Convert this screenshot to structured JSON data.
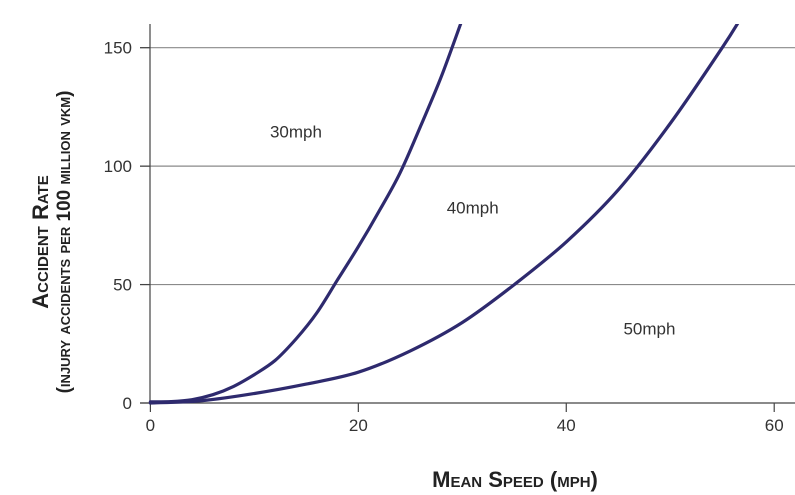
{
  "chart_data": {
    "type": "line",
    "xlabel": "Mean Speed (mph)",
    "ylabel": "Accident Rate",
    "ylabel_sub": "(injury accidents per 100 million vkm)",
    "xlim": [
      -1,
      62
    ],
    "ylim": [
      0,
      160
    ],
    "x_ticks": [
      0,
      20,
      40,
      60
    ],
    "y_ticks": [
      0,
      50,
      100,
      150
    ],
    "grid": "horizontal",
    "colors": {
      "line": "#2e2a6e",
      "grid": "#8a8a8a",
      "axis": "#444444",
      "text": "#333333"
    },
    "series": [
      {
        "name": "",
        "label_text": "30mph",
        "label_at": [
          14,
          112
        ],
        "x": [
          0,
          2,
          4,
          6,
          8,
          10,
          12,
          14,
          16,
          18,
          20,
          22,
          24,
          26,
          28,
          30
        ],
        "y": [
          0.5,
          0.6,
          1.4,
          3.5,
          7,
          12,
          18,
          27,
          38,
          52,
          66,
          81,
          97,
          117,
          138,
          162
        ]
      },
      {
        "name": "",
        "label_text": "40mph",
        "label_at": [
          31,
          80
        ],
        "x": [
          0,
          5,
          10,
          15,
          20,
          25,
          30,
          35,
          40,
          45,
          50,
          55,
          57
        ],
        "y": [
          0,
          1,
          4,
          8,
          13,
          22,
          34,
          50,
          68,
          90,
          118,
          150,
          164
        ]
      },
      {
        "name": "",
        "label_text": "50mph",
        "label_at": [
          48,
          29
        ],
        "x": [],
        "y": []
      }
    ]
  }
}
